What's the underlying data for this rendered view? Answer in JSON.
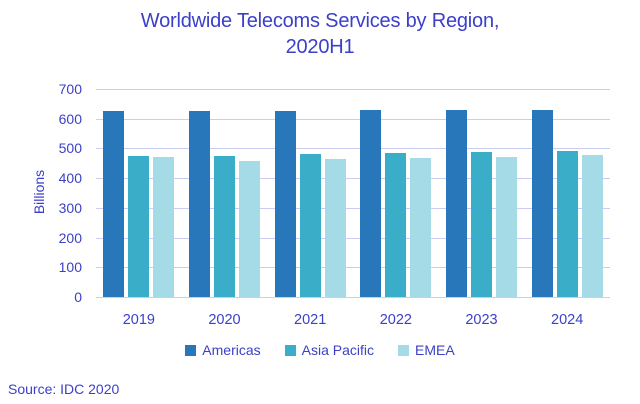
{
  "chart_data": {
    "type": "bar",
    "title": "Worldwide Telecoms Services by Region, 2020H1",
    "ylabel": "Billions",
    "xlabel": "",
    "source": "Source: IDC 2020",
    "categories": [
      "2019",
      "2020",
      "2021",
      "2022",
      "2023",
      "2024"
    ],
    "series": [
      {
        "name": "Americas",
        "color": "#2877BB",
        "values": [
          627,
          626,
          626,
          628,
          628,
          629
        ]
      },
      {
        "name": "Asia Pacific",
        "color": "#3AADC9",
        "values": [
          474,
          476,
          480,
          484,
          488,
          492
        ]
      },
      {
        "name": "EMEA",
        "color": "#A5DBE6",
        "values": [
          470,
          459,
          463,
          467,
          470,
          477
        ]
      }
    ],
    "ylim": [
      0,
      700
    ],
    "yticks": [
      0,
      100,
      200,
      300,
      400,
      500,
      600,
      700
    ],
    "grid": true,
    "legend_position": "bottom",
    "colors": {
      "text": "#3C40C8",
      "gridline": "#CBCCF2",
      "background": "#FFFFFF"
    }
  }
}
